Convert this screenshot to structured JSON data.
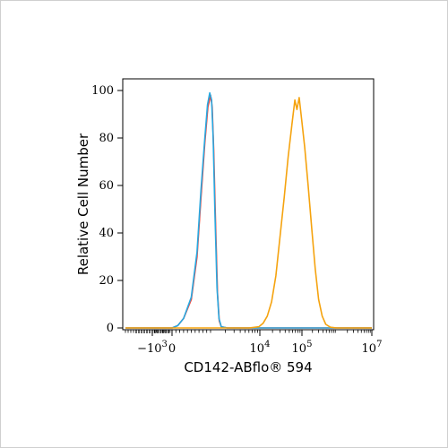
{
  "chart_data": {
    "type": "line",
    "title": "",
    "xlabel": "CD142-ABflo",
    "xlabel_suffix": "® 594",
    "ylabel": "Relative Cell Number",
    "x_scale": "biexponential",
    "xlim": [
      -2000,
      10000000
    ],
    "ylim": [
      0,
      100
    ],
    "y_ticks": [
      "0",
      "20",
      "40",
      "60",
      "80",
      "100"
    ],
    "x_ticks": [
      {
        "value": -1000,
        "base": "−10",
        "exp": "3"
      },
      {
        "value": 0,
        "base": "0",
        "exp": ""
      },
      {
        "value": 10000,
        "base": "10",
        "exp": "4"
      },
      {
        "value": 100000,
        "base": "10",
        "exp": "5"
      },
      {
        "value": 10000000,
        "base": "10",
        "exp": "7"
      }
    ],
    "grid": false,
    "legend": "none",
    "series": [
      {
        "color": "#ff3b30",
        "points": [
          [
            -2000,
            0
          ],
          [
            0,
            0
          ],
          [
            150,
            1
          ],
          [
            300,
            4
          ],
          [
            500,
            12
          ],
          [
            650,
            30
          ],
          [
            750,
            55
          ],
          [
            850,
            78
          ],
          [
            930,
            93
          ],
          [
            1000,
            98
          ],
          [
            1080,
            93
          ],
          [
            1160,
            75
          ],
          [
            1260,
            45
          ],
          [
            1380,
            15
          ],
          [
            1500,
            3
          ],
          [
            1650,
            0.5
          ],
          [
            2200,
            0
          ],
          [
            10000000,
            0
          ]
        ]
      },
      {
        "color": "#27a9e1",
        "points": [
          [
            -2000,
            0
          ],
          [
            0,
            0
          ],
          [
            150,
            1
          ],
          [
            300,
            4
          ],
          [
            500,
            13
          ],
          [
            650,
            32
          ],
          [
            750,
            58
          ],
          [
            850,
            80
          ],
          [
            920,
            94
          ],
          [
            980,
            99
          ],
          [
            1050,
            96
          ],
          [
            1130,
            80
          ],
          [
            1230,
            48
          ],
          [
            1350,
            17
          ],
          [
            1480,
            4
          ],
          [
            1650,
            0.5
          ],
          [
            2200,
            0
          ],
          [
            10000000,
            0
          ]
        ]
      },
      {
        "color": "#f5a30f",
        "points": [
          [
            -2000,
            0
          ],
          [
            0,
            0
          ],
          [
            6000,
            0
          ],
          [
            9500,
            0.5
          ],
          [
            12000,
            2
          ],
          [
            15000,
            5
          ],
          [
            19000,
            11
          ],
          [
            24000,
            22
          ],
          [
            30000,
            38
          ],
          [
            38000,
            55
          ],
          [
            47000,
            72
          ],
          [
            58000,
            86
          ],
          [
            68000,
            96
          ],
          [
            76000,
            92
          ],
          [
            86000,
            97
          ],
          [
            98000,
            88
          ],
          [
            120000,
            76
          ],
          [
            150000,
            60
          ],
          [
            190000,
            42
          ],
          [
            240000,
            25
          ],
          [
            300000,
            12
          ],
          [
            380000,
            5
          ],
          [
            480000,
            1.5
          ],
          [
            650000,
            0.3
          ],
          [
            1000000,
            0
          ],
          [
            10000000,
            0
          ]
        ]
      }
    ]
  }
}
